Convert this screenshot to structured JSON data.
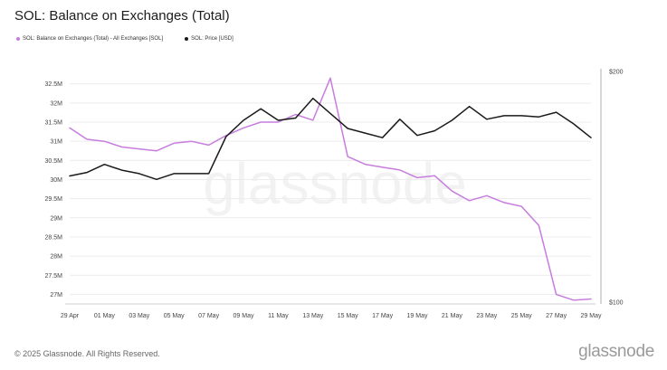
{
  "title": "SOL: Balance on Exchanges (Total)",
  "footer": "© 2025 Glassnode. All Rights Reserved.",
  "brand": "glassnode",
  "watermark": "glassnode",
  "chart_data": {
    "type": "line",
    "title": "SOL: Balance on Exchanges (Total)",
    "x": [
      "29 Apr",
      "30 Apr",
      "01 May",
      "02 May",
      "03 May",
      "04 May",
      "05 May",
      "06 May",
      "07 May",
      "08 May",
      "09 May",
      "10 May",
      "11 May",
      "12 May",
      "13 May",
      "14 May",
      "15 May",
      "16 May",
      "17 May",
      "18 May",
      "19 May",
      "20 May",
      "21 May",
      "22 May",
      "23 May",
      "24 May",
      "25 May",
      "26 May",
      "27 May",
      "28 May",
      "29 May"
    ],
    "x_tick_labels": [
      "29 Apr",
      "01 May",
      "03 May",
      "05 May",
      "07 May",
      "09 May",
      "11 May",
      "13 May",
      "15 May",
      "17 May",
      "19 May",
      "21 May",
      "23 May",
      "25 May",
      "27 May",
      "29 May"
    ],
    "y_left": {
      "range": [
        26.75,
        32.8
      ],
      "ticks": [
        27,
        27.5,
        28,
        28.5,
        29,
        29.5,
        30,
        30.5,
        31,
        31.5,
        32,
        32.5
      ],
      "tick_labels": [
        "27M",
        "27.5M",
        "28M",
        "28.5M",
        "29M",
        "29.5M",
        "30M",
        "30.5M",
        "31M",
        "31.5M",
        "32M",
        "32.5M"
      ]
    },
    "y_right": {
      "range": [
        100,
        200
      ],
      "ticks": [
        100,
        200
      ],
      "tick_labels": [
        "$100",
        "$200"
      ]
    },
    "grid": true,
    "legend_position": "top-left",
    "series": [
      {
        "name": "SOL: Balance on Exchanges (Total) - All Exchanges [SOL]",
        "axis": "left",
        "color": "#c77dde",
        "values": [
          31.35,
          31.05,
          31.0,
          30.85,
          30.8,
          30.75,
          30.95,
          31.0,
          30.9,
          31.15,
          31.35,
          31.5,
          31.5,
          31.7,
          31.55,
          32.65,
          30.6,
          30.4,
          30.32,
          30.25,
          30.05,
          30.1,
          29.7,
          29.45,
          29.58,
          29.4,
          29.3,
          28.8,
          27.0,
          26.85,
          26.88
        ]
      },
      {
        "name": "SOL: Price [USD]",
        "axis": "right",
        "color": "#1a1a1a",
        "values": [
          154.5,
          156,
          159.5,
          157,
          155.5,
          153,
          155.5,
          155.5,
          155.5,
          171.5,
          178.5,
          183.5,
          178.5,
          179.5,
          188,
          181.5,
          175,
          173,
          171,
          179,
          172,
          174,
          178.5,
          184.5,
          179,
          180.5,
          180.5,
          180,
          182,
          177,
          171
        ]
      }
    ]
  }
}
